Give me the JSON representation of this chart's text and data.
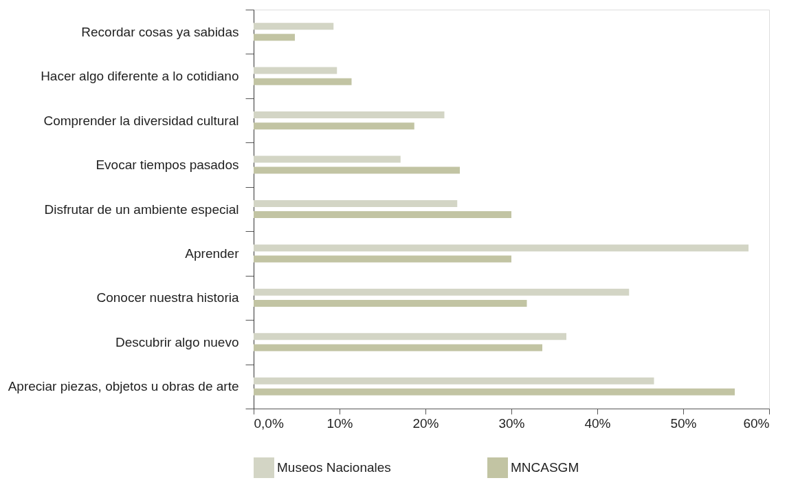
{
  "chart_data": {
    "type": "bar",
    "orientation": "horizontal",
    "categories": [
      "Recordar cosas ya sabidas",
      "Hacer algo diferente a lo cotidiano",
      "Comprender la diversidad cultural",
      "Evocar tiempos pasados",
      "Disfrutar de un ambiente especial",
      "Aprender",
      "Conocer nuestra  historia",
      "Descubrir algo nuevo",
      "Apreciar piezas,  objetos u obras de arte"
    ],
    "series": [
      {
        "name": "Museos Nacionales",
        "color": "#d3d5c5",
        "values": [
          9.3,
          9.7,
          22.2,
          17.1,
          23.7,
          57.6,
          43.7,
          36.4,
          46.6
        ]
      },
      {
        "name": "MNCASGM",
        "color": "#c2c4a3",
        "values": [
          4.8,
          11.4,
          18.7,
          24.0,
          30.0,
          30.0,
          31.8,
          33.6,
          56.0
        ]
      }
    ],
    "xlim": [
      0,
      60
    ],
    "xticks": [
      {
        "value": 0,
        "label": "0,0%"
      },
      {
        "value": 10,
        "label": "10%"
      },
      {
        "value": 20,
        "label": "20%"
      },
      {
        "value": 30,
        "label": "30%"
      },
      {
        "value": 40,
        "label": "40%"
      },
      {
        "value": 50,
        "label": "50%"
      },
      {
        "value": 60,
        "label": "60%"
      }
    ],
    "grid": false,
    "legend": "bottom"
  }
}
